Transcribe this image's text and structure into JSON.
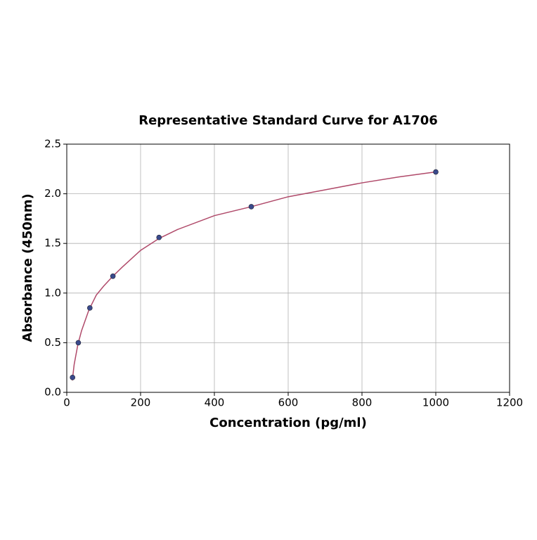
{
  "chart_data": {
    "type": "scatter",
    "title": "Representative Standard Curve for A1706",
    "xlabel": "Concentration (pg/ml)",
    "ylabel": "Absorbance (450nm)",
    "x": [
      15.6,
      31.25,
      62.5,
      125,
      250,
      500,
      1000
    ],
    "values": [
      0.15,
      0.5,
      0.85,
      1.17,
      1.56,
      1.87,
      2.22
    ],
    "color": "#3a4a8c",
    "curve": {
      "color": "#b04a6a",
      "x": [
        15,
        20,
        30,
        40,
        60,
        80,
        100,
        125,
        150,
        200,
        250,
        300,
        400,
        500,
        600,
        700,
        800,
        900,
        1000
      ],
      "values": [
        0.12,
        0.28,
        0.48,
        0.62,
        0.83,
        0.98,
        1.07,
        1.17,
        1.26,
        1.43,
        1.55,
        1.64,
        1.78,
        1.87,
        1.97,
        2.04,
        2.11,
        2.17,
        2.22
      ]
    },
    "xlim": [
      0,
      1200
    ],
    "xticks": [
      0,
      200,
      400,
      600,
      800,
      1000,
      1200
    ],
    "ylim": [
      0,
      2.5
    ],
    "yticks": [
      {
        "value": 0,
        "label": "0.0"
      },
      0.5,
      {
        "value": 1,
        "label": "1.0"
      },
      1.5,
      {
        "value": 2,
        "label": "2.0"
      },
      2.5
    ],
    "grid": true
  }
}
